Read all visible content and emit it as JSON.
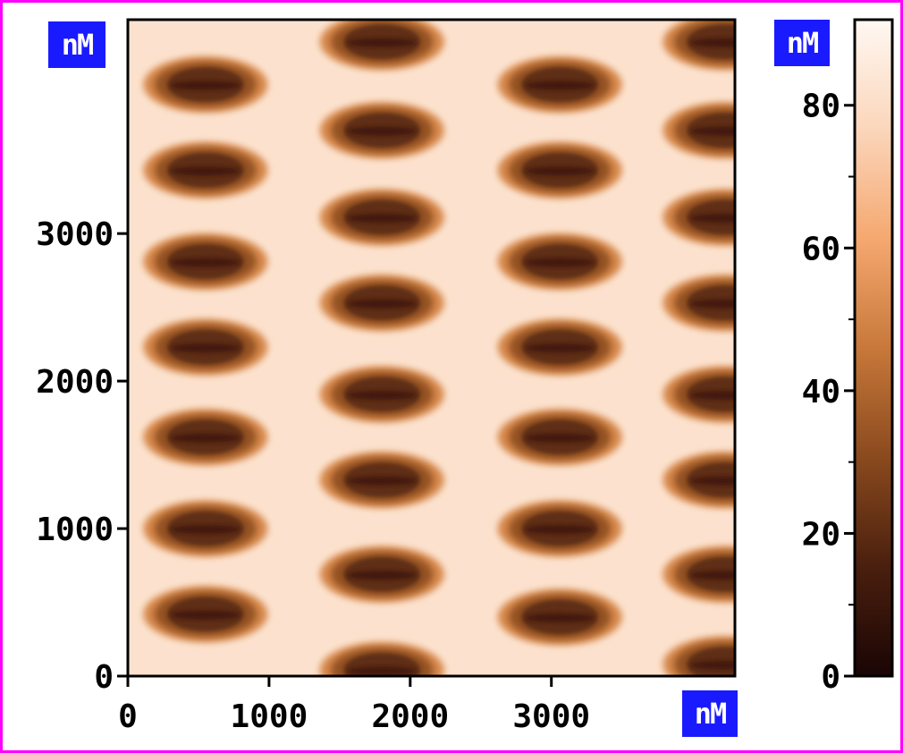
{
  "chart_data": {
    "type": "heatmap",
    "title": "",
    "xlabel": "",
    "ylabel": "",
    "x_unit": "nM",
    "y_unit": "nM",
    "colorbar_unit": "nM",
    "xlim": [
      0,
      4300
    ],
    "ylim": [
      0,
      4450
    ],
    "x_ticks": [
      0,
      1000,
      2000,
      3000
    ],
    "y_ticks": [
      0,
      1000,
      2000,
      3000
    ],
    "colorbar_range": [
      0,
      92
    ],
    "colorbar_ticks": [
      0,
      20,
      40,
      60,
      80
    ],
    "colormap": [
      "#1a0505",
      "#4a1f0e",
      "#8a4a1e",
      "#c8783a",
      "#f5a870",
      "#fbd6bb",
      "#fff8f2"
    ],
    "background_height": 82,
    "pit_depth_min": 12,
    "pit_columns": [
      {
        "x": 550,
        "y_centers": [
          420,
          1000,
          1620,
          2230,
          2810,
          3430,
          4010
        ]
      },
      {
        "x": 1800,
        "y_centers": [
          40,
          690,
          1330,
          1910,
          2530,
          3110,
          3700,
          4300
        ]
      },
      {
        "x": 3060,
        "y_centers": [
          400,
          1000,
          1620,
          2230,
          2810,
          3430,
          4010
        ]
      },
      {
        "x": 4230,
        "y_centers": [
          80,
          690,
          1330,
          1910,
          2530,
          3110,
          3700,
          4300
        ]
      }
    ],
    "pit_size_x": 880,
    "pit_size_y": 380
  }
}
